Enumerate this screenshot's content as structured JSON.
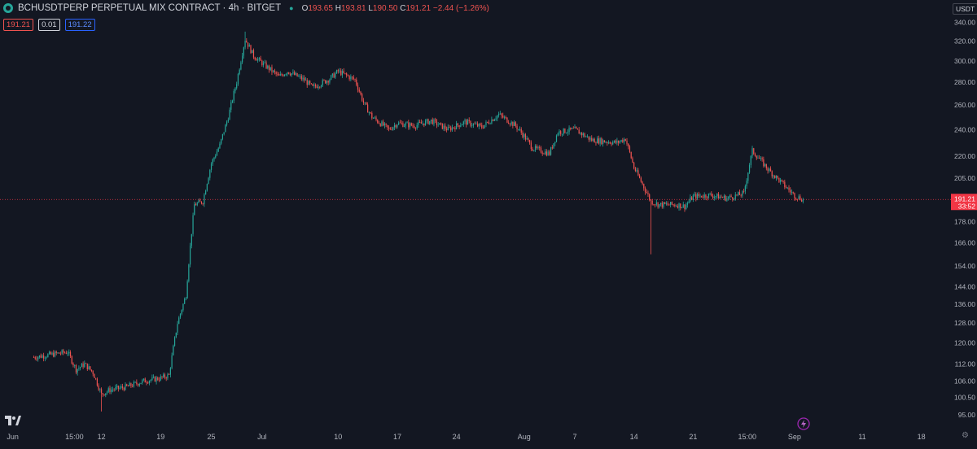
{
  "header": {
    "title": "BCHUSDTPERP PERPETUAL MIX CONTRACT · 4h · BITGET",
    "open_label": "O",
    "open": "193.65",
    "high_label": "H",
    "high": "193.81",
    "low_label": "L",
    "low": "190.50",
    "close_label": "C",
    "close": "191.21",
    "change": "−2.44 (−1.26%)"
  },
  "quotes": {
    "sell": "191.21",
    "spread": "0.01",
    "buy": "191.22"
  },
  "currency": "USDT",
  "last_price": {
    "value": "191.21",
    "countdown": "33:52",
    "color": "#f23645"
  },
  "colors": {
    "up": "#26a69a",
    "down": "#ef5350",
    "background": "#131722"
  },
  "icons": {
    "logo": "tradingview-logo-icon",
    "replay": "lightning-icon",
    "settings": "gear-icon"
  },
  "chart_data": {
    "type": "candlestick",
    "interval": "4h",
    "yscale": "log",
    "ylim": [
      92,
      345
    ],
    "price_ticks": [
      "340.00",
      "320.00",
      "300.00",
      "280.00",
      "260.00",
      "240.00",
      "220.00",
      "205.00",
      "190.00",
      "178.00",
      "166.00",
      "154.00",
      "144.00",
      "136.00",
      "128.00",
      "120.00",
      "112.00",
      "106.00",
      "100.50",
      "95.00"
    ],
    "time_ticks": [
      "Jun",
      "15:00",
      "12",
      "19",
      "25",
      "Jul",
      "10",
      "17",
      "24",
      "Aug",
      "7",
      "14",
      "21",
      "15:00",
      "Sep",
      "11",
      "18"
    ],
    "price_path": [
      [
        "Jun 5",
        114.5
      ],
      [
        "Jun 7",
        115.5
      ],
      [
        "Jun 9",
        116.5
      ],
      [
        "Jun 10",
        110
      ],
      [
        "Jun 11",
        112
      ],
      [
        "Jun 12",
        109
      ],
      [
        "Jun 13",
        101.5
      ],
      [
        "Jun 14",
        103
      ],
      [
        "Jun 16",
        104
      ],
      [
        "Jun 18",
        106
      ],
      [
        "Jun 20",
        107
      ],
      [
        "Jun 21",
        108
      ],
      [
        "Jun 22",
        128
      ],
      [
        "Jun 23",
        140
      ],
      [
        "Jun 24",
        188
      ],
      [
        "Jun 25",
        190
      ],
      [
        "Jun 26",
        215
      ],
      [
        "Jun 27",
        228
      ],
      [
        "Jun 28",
        250
      ],
      [
        "Jun 29",
        280
      ],
      [
        "Jun 30",
        322
      ],
      [
        "Jul 1",
        305
      ],
      [
        "Jul 2",
        298
      ],
      [
        "Jul 4",
        285
      ],
      [
        "Jul 5",
        290
      ],
      [
        "Jul 7",
        282
      ],
      [
        "Jul 8",
        275
      ],
      [
        "Jul 10",
        283
      ],
      [
        "Jul 11",
        290
      ],
      [
        "Jul 13",
        282
      ],
      [
        "Jul 14",
        262
      ],
      [
        "Jul 15",
        250
      ],
      [
        "Jul 17",
        240
      ],
      [
        "Jul 18",
        245
      ],
      [
        "Jul 20",
        243
      ],
      [
        "Jul 22",
        247
      ],
      [
        "Jul 24",
        240
      ],
      [
        "Jul 26",
        246
      ],
      [
        "Jul 28",
        242
      ],
      [
        "Jul 30",
        252
      ],
      [
        "Aug 1",
        243
      ],
      [
        "Aug 2",
        235
      ],
      [
        "Aug 3",
        226
      ],
      [
        "Aug 5",
        222
      ],
      [
        "Aug 6",
        238
      ],
      [
        "Aug 8",
        240
      ],
      [
        "Aug 10",
        232
      ],
      [
        "Aug 13",
        230
      ],
      [
        "Aug 14",
        233
      ],
      [
        "Aug 15",
        212
      ],
      [
        "Aug 17",
        190
      ],
      [
        "Aug 18",
        188
      ],
      [
        "Aug 20",
        188
      ],
      [
        "Aug 21",
        187
      ],
      [
        "Aug 22",
        193
      ],
      [
        "Aug 24",
        194
      ],
      [
        "Aug 26",
        192
      ],
      [
        "Aug 28",
        195
      ],
      [
        "Aug 29",
        224
      ],
      [
        "Aug 31",
        210
      ],
      [
        "Sep 2",
        199
      ],
      [
        "Sep 3",
        193.65
      ],
      [
        "Sep 4",
        191.21
      ]
    ],
    "annotations": [
      [
        "Jun 13",
        96,
        "wick low"
      ],
      [
        "Aug 17",
        160,
        "wick low"
      ],
      [
        "Jun 30",
        330,
        "high"
      ]
    ]
  }
}
